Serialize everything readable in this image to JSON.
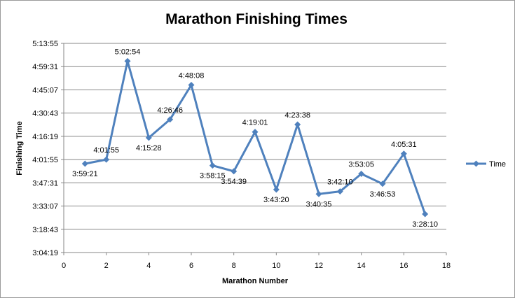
{
  "chart_data": {
    "type": "line",
    "title": "Marathon Finishing Times",
    "xlabel": "Marathon Number",
    "ylabel": "Finishing Time",
    "xlim": [
      0,
      18
    ],
    "x_ticks": [
      0,
      2,
      4,
      6,
      8,
      10,
      12,
      14,
      16,
      18
    ],
    "ylim": [
      "3:04:19",
      "5:13:55"
    ],
    "y_ticks": [
      "3:04:19",
      "3:18:43",
      "3:33:07",
      "3:47:31",
      "4:01:55",
      "4:16:19",
      "4:30:43",
      "4:45:07",
      "4:59:31",
      "5:13:55"
    ],
    "grid": "horizontal",
    "legend": "right",
    "series": [
      {
        "name": "Time",
        "color": "#4f81bd",
        "x": [
          1,
          2,
          3,
          4,
          5,
          6,
          7,
          8,
          9,
          10,
          11,
          12,
          13,
          14,
          15,
          16,
          17
        ],
        "values": [
          "3:59:21",
          "4:01:55",
          "5:02:54",
          "4:15:28",
          "4:26:46",
          "4:48:08",
          "3:58:15",
          "3:54:39",
          "4:19:01",
          "3:43:20",
          "4:23:38",
          "3:40:35",
          "3:42:10",
          "3:53:05",
          "3:46:53",
          "4:05:31",
          "3:28:10"
        ]
      }
    ]
  }
}
